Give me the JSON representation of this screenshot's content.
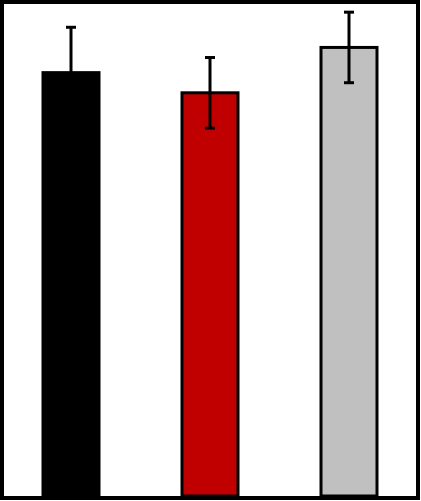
{
  "chart_data": {
    "type": "bar",
    "categories": [
      "",
      "",
      ""
    ],
    "values": [
      0.84,
      0.8,
      0.89
    ],
    "errors": [
      0.09,
      0.07,
      0.07
    ],
    "colors": [
      "#000000",
      "#c00000",
      "#c0c0c0"
    ],
    "ylim": [
      0,
      1
    ],
    "grid": false,
    "legend": "none",
    "title": "",
    "xlabel": "",
    "ylabel": ""
  }
}
